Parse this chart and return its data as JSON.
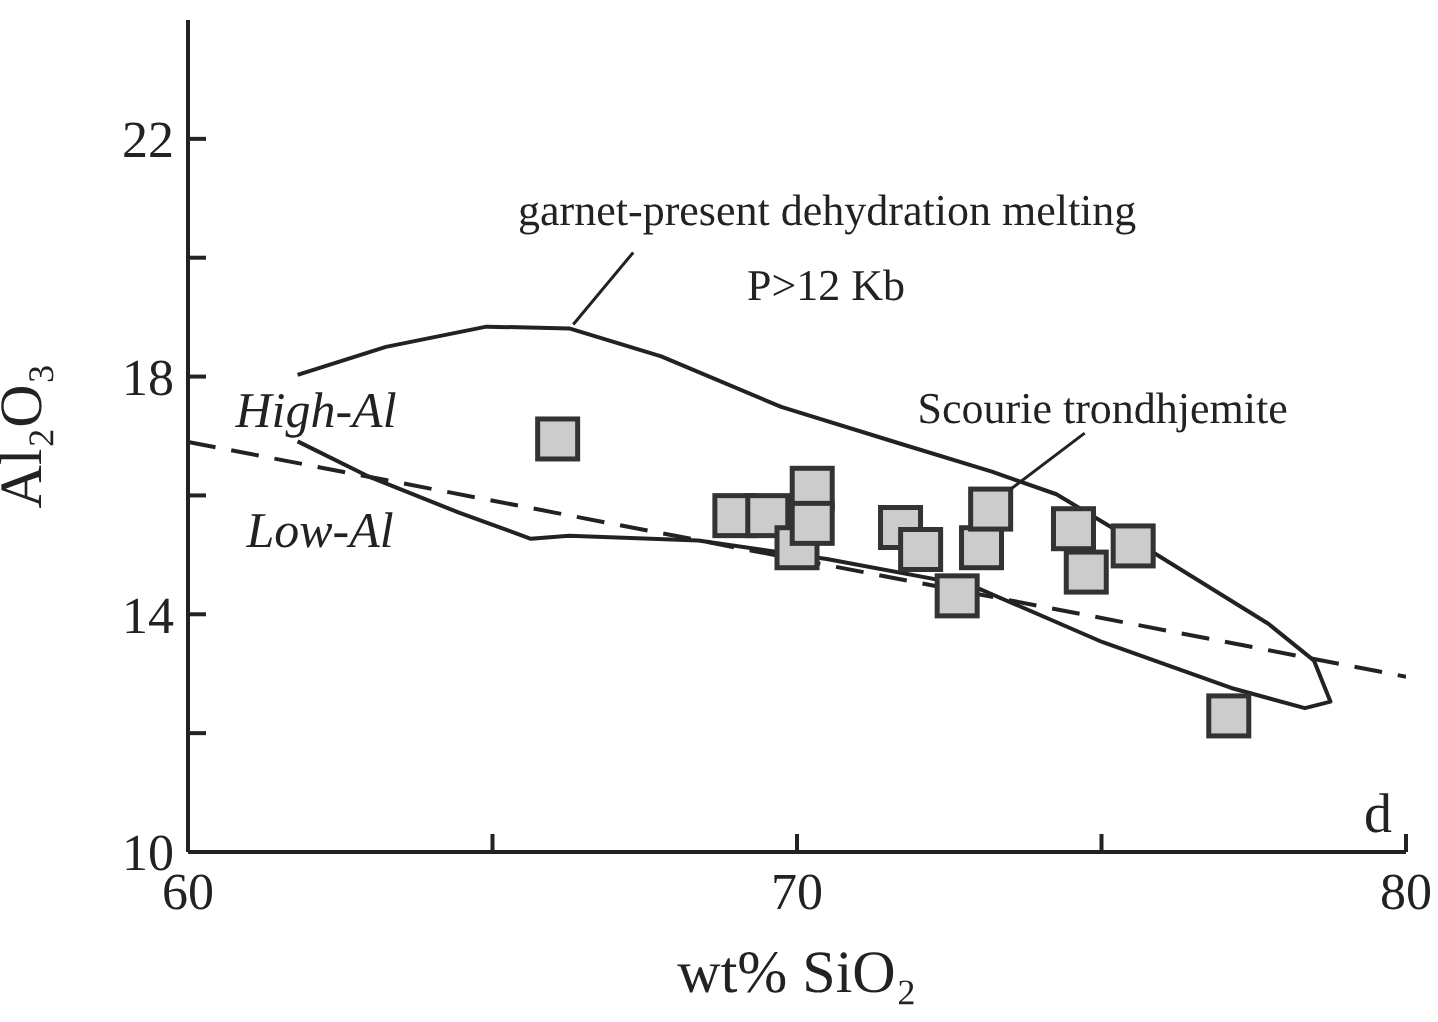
{
  "chart_data": {
    "type": "scatter",
    "xlabel": "wt% SiO₂",
    "ylabel": "Al₂O₃",
    "xlim": [
      60,
      80
    ],
    "xticks": [
      60,
      {
        "value": 65,
        "label": null
      },
      70,
      {
        "value": 75,
        "label": null
      },
      80
    ],
    "ylim": [
      10,
      24
    ],
    "yticks": [
      10,
      {
        "value": 12,
        "label": null
      },
      14,
      {
        "value": 16,
        "label": null
      },
      18,
      {
        "value": 20,
        "label": null
      },
      22
    ],
    "series": [
      {
        "type": "line",
        "color": "#222222",
        "marker": "none",
        "line_style": "solid",
        "x": [
          61.8,
          63.25,
          64.9,
          66.26,
          67.77,
          69.74,
          71.7,
          73.2,
          74.26,
          75.77,
          77.74,
          78.49,
          78.76,
          78.34,
          77.13,
          75.02,
          72.9,
          70.49,
          68.38,
          66.26,
          65.63,
          64.45,
          62.94,
          61.8
        ],
        "values": [
          18.03,
          18.5,
          18.84,
          18.81,
          18.34,
          17.49,
          16.87,
          16.4,
          16.02,
          15.09,
          13.84,
          13.22,
          12.53,
          12.42,
          12.76,
          13.53,
          14.47,
          14.93,
          15.24,
          15.32,
          15.27,
          15.71,
          16.33,
          16.91
        ]
      },
      {
        "type": "line",
        "color": "#222222",
        "marker": "none",
        "line_style": "dashed",
        "x": [
          60,
          80
        ],
        "values": [
          16.9,
          12.95
        ]
      },
      {
        "color": "#cccccc",
        "marker": "square",
        "x": [
          66.07,
          68.98,
          69.52,
          70.0,
          70.25,
          70.25,
          71.7,
          72.03,
          72.63,
          73.03,
          73.18,
          74.54,
          74.75,
          75.52,
          77.09
        ],
        "values": [
          16.95,
          15.66,
          15.66,
          15.12,
          16.12,
          15.53,
          15.46,
          15.09,
          14.31,
          15.12,
          15.77,
          15.44,
          14.71,
          15.15,
          12.29
        ]
      }
    ],
    "annotations": [
      {
        "text": "garnet-present dehydration melting",
        "x": 66.26,
        "y": 18.81
      },
      "P>12 Kb",
      {
        "text": "Scourie trondhjemite",
        "x": 73.18,
        "y": 15.77
      },
      "High-Al",
      "Low-Al",
      "d"
    ]
  }
}
